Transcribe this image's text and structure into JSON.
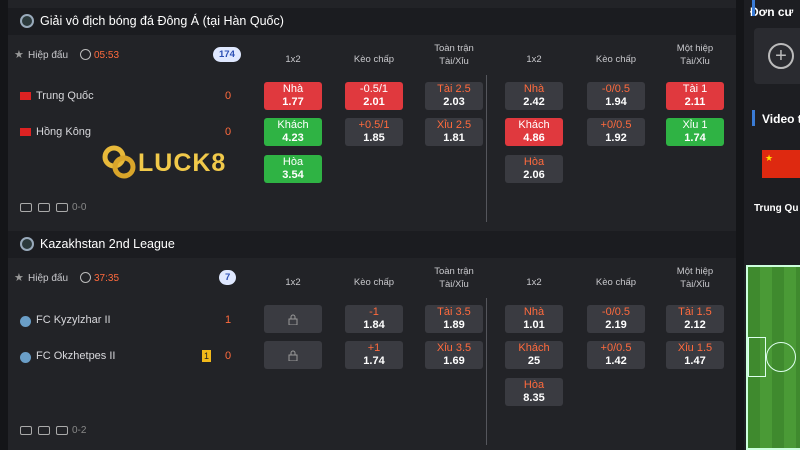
{
  "sections": [
    {
      "league": "Giải vô địch bóng đá Đông Á (tại Hàn Quốc)",
      "status": "Hiệp đấu",
      "clock": "05:53",
      "count": "174",
      "headers": [
        [
          "1x2"
        ],
        [
          "Kèo chấp"
        ],
        [
          "Toàn trận",
          "Tài/Xỉu"
        ],
        [
          "1x2"
        ],
        [
          "Kèo chấp"
        ],
        [
          "Một hiệp",
          "Tài/Xỉu"
        ]
      ],
      "teams": [
        {
          "name": "Trung Quốc",
          "score": "0",
          "flag": "cn"
        },
        {
          "name": "Hồng Kông",
          "score": "0",
          "flag": "hk"
        }
      ],
      "markets": [
        [
          {
            "label": "Nhà",
            "odds": "1.77",
            "style": "red"
          },
          {
            "label": "Khách",
            "odds": "4.23",
            "style": "green"
          },
          {
            "label": "Hòa",
            "odds": "3.54",
            "style": "green"
          }
        ],
        [
          {
            "label": "-0.5/1",
            "odds": "2.01",
            "style": "red"
          },
          {
            "label": "+0.5/1",
            "odds": "1.85",
            "style": "plain"
          }
        ],
        [
          {
            "label": "Tài 2.5",
            "odds": "2.03",
            "style": "plain"
          },
          {
            "label": "Xỉu 2.5",
            "odds": "1.81",
            "style": "plain"
          }
        ],
        [
          {
            "label": "Nhà",
            "odds": "2.42",
            "style": "plain"
          },
          {
            "label": "Khách",
            "odds": "4.86",
            "style": "red"
          },
          {
            "label": "Hòa",
            "odds": "2.06",
            "style": "plain"
          }
        ],
        [
          {
            "label": "-0/0.5",
            "odds": "1.94",
            "style": "plain"
          },
          {
            "label": "+0/0.5",
            "odds": "1.92",
            "style": "plain"
          }
        ],
        [
          {
            "label": "Tài 1",
            "odds": "2.11",
            "style": "red"
          },
          {
            "label": "Xỉu 1",
            "odds": "1.74",
            "style": "green"
          }
        ]
      ],
      "result": "0-0"
    },
    {
      "league": "Kazakhstan 2nd League",
      "status": "Hiệp đấu",
      "clock": "37:35",
      "count": "7",
      "headers": [
        [
          "1x2"
        ],
        [
          "Kèo chấp"
        ],
        [
          "Toàn trận",
          "Tài/Xỉu"
        ],
        [
          "1x2"
        ],
        [
          "Kèo chấp"
        ],
        [
          "Một hiệp",
          "Tài/Xỉu"
        ]
      ],
      "teams": [
        {
          "name": "FC Kyzylzhar II",
          "score": "1",
          "flag": "fc"
        },
        {
          "name": "FC Okzhetpes II",
          "score": "0",
          "flag": "fc",
          "card": "1"
        }
      ],
      "markets": [
        [
          {
            "locked": true
          },
          {
            "locked": true
          }
        ],
        [
          {
            "label": "-1",
            "odds": "1.84",
            "style": "plain"
          },
          {
            "label": "+1",
            "odds": "1.74",
            "style": "plain"
          }
        ],
        [
          {
            "label": "Tài 3.5",
            "odds": "1.89",
            "style": "plain"
          },
          {
            "label": "Xỉu 3.5",
            "odds": "1.69",
            "style": "plain"
          }
        ],
        [
          {
            "label": "Nhà",
            "odds": "1.01",
            "style": "plain"
          },
          {
            "label": "Khách",
            "odds": "25",
            "style": "plain"
          },
          {
            "label": "Hòa",
            "odds": "8.35",
            "style": "plain"
          }
        ],
        [
          {
            "label": "-0/0.5",
            "odds": "2.19",
            "style": "plain"
          },
          {
            "label": "+0/0.5",
            "odds": "1.42",
            "style": "plain"
          }
        ],
        [
          {
            "label": "Tài 1.5",
            "odds": "2.12",
            "style": "plain"
          },
          {
            "label": "Xỉu 1.5",
            "odds": "1.47",
            "style": "plain"
          }
        ]
      ],
      "result": "0-2"
    }
  ],
  "watermark": "LUCK8",
  "sidebar": {
    "betslip": "Đơn cư",
    "video": "Video t",
    "match": "Trung Qu"
  }
}
